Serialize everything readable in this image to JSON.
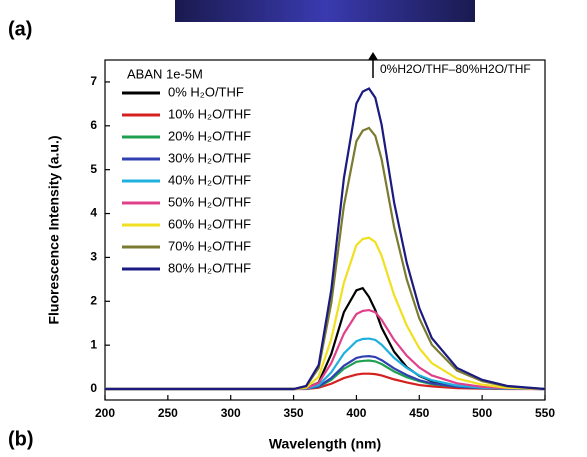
{
  "chart_data": {
    "type": "line",
    "panel_labels": [
      "(a)",
      "(b)"
    ],
    "legend_title": "ABAN 1e-5M",
    "annotation": "0%H2O/THF–80%H2O/THF",
    "xlabel": "Wavelength (nm)",
    "ylabel": "Fluorescence Intensity (a.u.)",
    "x": [
      200,
      350,
      360,
      370,
      380,
      390,
      400,
      405,
      410,
      415,
      420,
      430,
      440,
      450,
      460,
      480,
      500,
      520,
      550
    ],
    "xlim": [
      200,
      550
    ],
    "xticks": [
      200,
      250,
      300,
      350,
      400,
      450,
      500,
      550
    ],
    "ylim": [
      -0.25,
      7.5
    ],
    "yticks": [
      0,
      1,
      2,
      3,
      4,
      5,
      6,
      7
    ],
    "series": [
      {
        "name": "0% H₂O/THF",
        "color": "#000000",
        "values": [
          0,
          0,
          0.02,
          0.15,
          0.8,
          1.75,
          2.25,
          2.3,
          2.1,
          1.8,
          1.4,
          0.85,
          0.5,
          0.3,
          0.18,
          0.07,
          0.03,
          0.01,
          0
        ]
      },
      {
        "name": "10% H₂O/THF",
        "color": "#d62020",
        "values": [
          0,
          0,
          0,
          0.03,
          0.12,
          0.25,
          0.33,
          0.35,
          0.35,
          0.34,
          0.31,
          0.22,
          0.15,
          0.09,
          0.06,
          0.02,
          0.01,
          0,
          0
        ]
      },
      {
        "name": "20% H₂O/THF",
        "color": "#1fa050",
        "values": [
          0,
          0,
          0.01,
          0.05,
          0.21,
          0.46,
          0.62,
          0.64,
          0.65,
          0.63,
          0.57,
          0.4,
          0.27,
          0.18,
          0.11,
          0.05,
          0.02,
          0.01,
          0
        ]
      },
      {
        "name": "30% H₂O/THF",
        "color": "#3040b0",
        "values": [
          0,
          0,
          0.01,
          0.06,
          0.25,
          0.53,
          0.71,
          0.74,
          0.75,
          0.73,
          0.66,
          0.47,
          0.32,
          0.2,
          0.13,
          0.05,
          0.02,
          0.01,
          0
        ]
      },
      {
        "name": "40% H₂O/THF",
        "color": "#20b0e0",
        "values": [
          0,
          0,
          0.01,
          0.09,
          0.38,
          0.81,
          1.09,
          1.14,
          1.15,
          1.12,
          1.01,
          0.71,
          0.48,
          0.31,
          0.2,
          0.08,
          0.03,
          0.01,
          0
        ]
      },
      {
        "name": "50% H₂O/THF",
        "color": "#e0408a",
        "values": [
          0,
          0,
          0.02,
          0.14,
          0.59,
          1.26,
          1.71,
          1.78,
          1.8,
          1.75,
          1.58,
          1.12,
          0.76,
          0.49,
          0.31,
          0.13,
          0.05,
          0.02,
          0
        ]
      },
      {
        "name": "60% H₂O/THF",
        "color": "#f0e020",
        "values": [
          0,
          0,
          0.03,
          0.28,
          1.14,
          2.42,
          3.28,
          3.42,
          3.45,
          3.35,
          3.04,
          2.14,
          1.45,
          0.93,
          0.59,
          0.24,
          0.1,
          0.03,
          0
        ]
      },
      {
        "name": "70% H₂O/THF",
        "color": "#7a7a30",
        "values": [
          0,
          0,
          0.06,
          0.48,
          1.96,
          4.17,
          5.65,
          5.89,
          5.95,
          5.77,
          5.24,
          3.69,
          2.5,
          1.61,
          1.01,
          0.42,
          0.18,
          0.06,
          0
        ]
      },
      {
        "name": "80% H₂O/THF",
        "color": "#1a1a80",
        "values": [
          0,
          0,
          0.07,
          0.55,
          2.26,
          4.8,
          6.51,
          6.78,
          6.85,
          6.64,
          6.03,
          4.25,
          2.88,
          1.85,
          1.16,
          0.48,
          0.21,
          0.07,
          0
        ]
      }
    ]
  }
}
